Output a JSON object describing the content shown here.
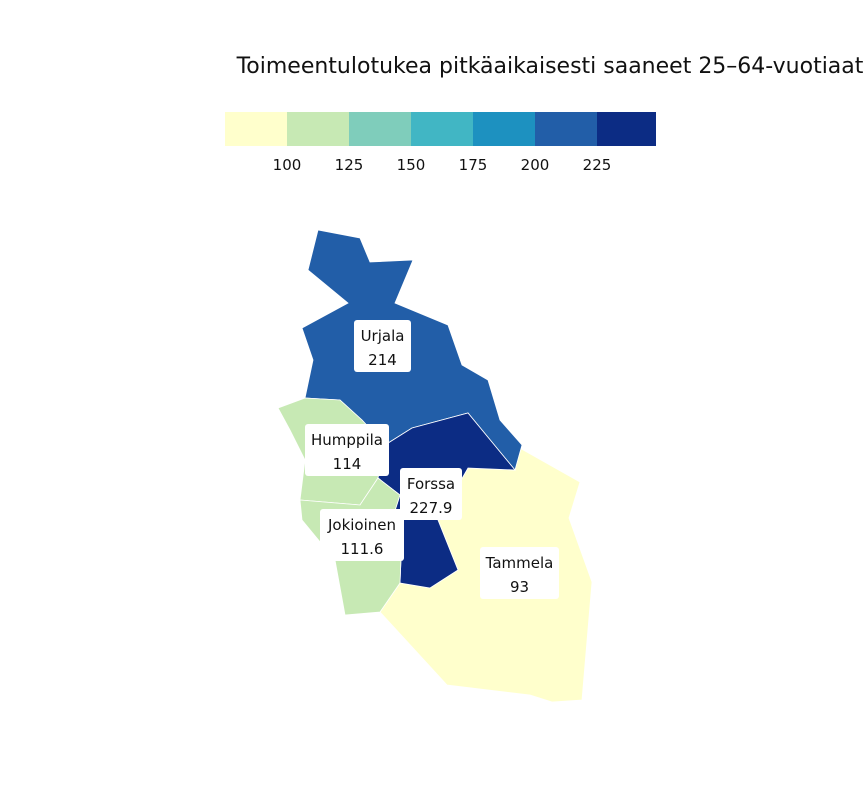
{
  "title": "Toimeentulotukea pitkäaikaisesti saaneet 25–64-vuotiaat",
  "legend": {
    "colors": [
      "#ffffcc",
      "#c7e9b4",
      "#7fcdbb",
      "#41b6c4",
      "#1d91c0",
      "#225ea8",
      "#0c2c84"
    ],
    "ticks": [
      "100",
      "125",
      "150",
      "175",
      "200",
      "225"
    ]
  },
  "regions": [
    {
      "id": "urjala",
      "name": "Urjala",
      "value": "214",
      "color": "#225ea8"
    },
    {
      "id": "humppila",
      "name": "Humppila",
      "value": "114",
      "color": "#c7e9b4"
    },
    {
      "id": "forssa",
      "name": "Forssa",
      "value": "227.9",
      "color": "#0c2c84"
    },
    {
      "id": "jokioinen",
      "name": "Jokioinen",
      "value": "111.6",
      "color": "#c7e9b4"
    },
    {
      "id": "tammela",
      "name": "Tammela",
      "value": "93",
      "color": "#ffffcc"
    }
  ]
}
